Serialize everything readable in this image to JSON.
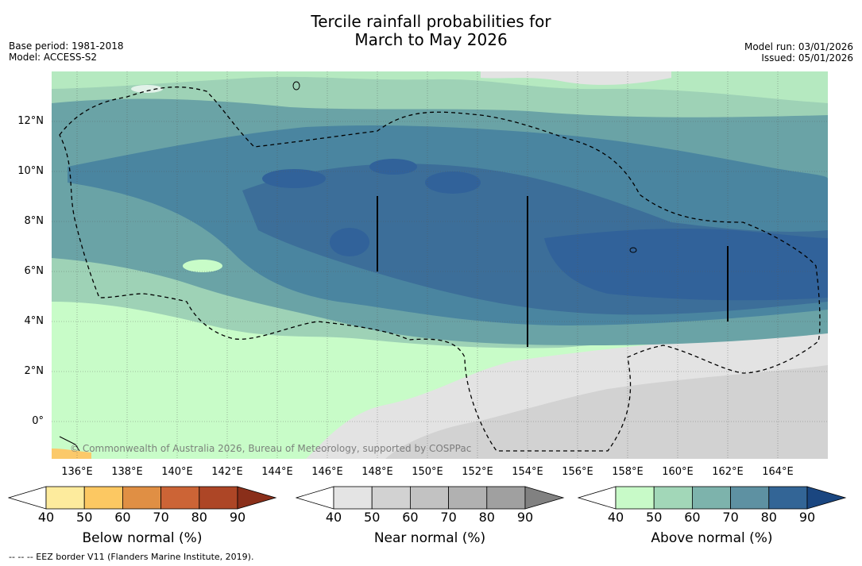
{
  "title_line1": "Tercile rainfall probabilities for",
  "title_line2": "March to May 2026",
  "left_meta": {
    "base_period": "Base period: 1981-2018",
    "model": "Model: ACCESS-S2"
  },
  "right_meta": {
    "model_run": "Model run: 03/01/2026",
    "issued": "Issued: 05/01/2026"
  },
  "map": {
    "lat_labels": [
      "12°N",
      "10°N",
      "8°N",
      "6°N",
      "4°N",
      "2°N",
      "0°"
    ],
    "lon_labels": [
      "136°E",
      "138°E",
      "140°E",
      "142°E",
      "144°E",
      "146°E",
      "148°E",
      "150°E",
      "152°E",
      "154°E",
      "156°E",
      "158°E",
      "160°E",
      "162°E",
      "164°E"
    ],
    "copyright": "© Commonwealth of Australia 2026, Bureau of Meteorology, supported by COSPPac",
    "colors": {
      "ocean_low": "#c8fcc8",
      "light_teal": "#9ed2b6",
      "teal": "#6aa3a6",
      "steel": "#4a85a0",
      "blue": "#3c6e99",
      "deep_blue": "#31629a",
      "gray_light": "#e3e3e3",
      "gray_mid": "#d2d2d2",
      "orange": "#fbc96a"
    }
  },
  "colorbars": [
    {
      "title": "Below normal (%)",
      "ticks": [
        "40",
        "50",
        "60",
        "70",
        "80",
        "90"
      ],
      "colors": [
        "#ffffff",
        "#fdeb9d",
        "#fcc862",
        "#e08f44",
        "#cc6436",
        "#ad4626",
        "#8a2f1a"
      ]
    },
    {
      "title": "Near normal (%)",
      "ticks": [
        "40",
        "50",
        "60",
        "70",
        "80",
        "90"
      ],
      "colors": [
        "#ffffff",
        "#e4e4e4",
        "#d2d2d2",
        "#c2c2c2",
        "#b1b1b1",
        "#a0a0a0",
        "#818181"
      ]
    },
    {
      "title": "Above normal (%)",
      "ticks": [
        "40",
        "50",
        "60",
        "70",
        "80",
        "90"
      ],
      "colors": [
        "#ffffff",
        "#c8fac8",
        "#a2d7b8",
        "#7db3ac",
        "#5e91a2",
        "#336596",
        "#1a4680"
      ]
    }
  ],
  "footnote": "--  --  -- EEZ border V11 (Flanders Marine Institute, 2019)."
}
